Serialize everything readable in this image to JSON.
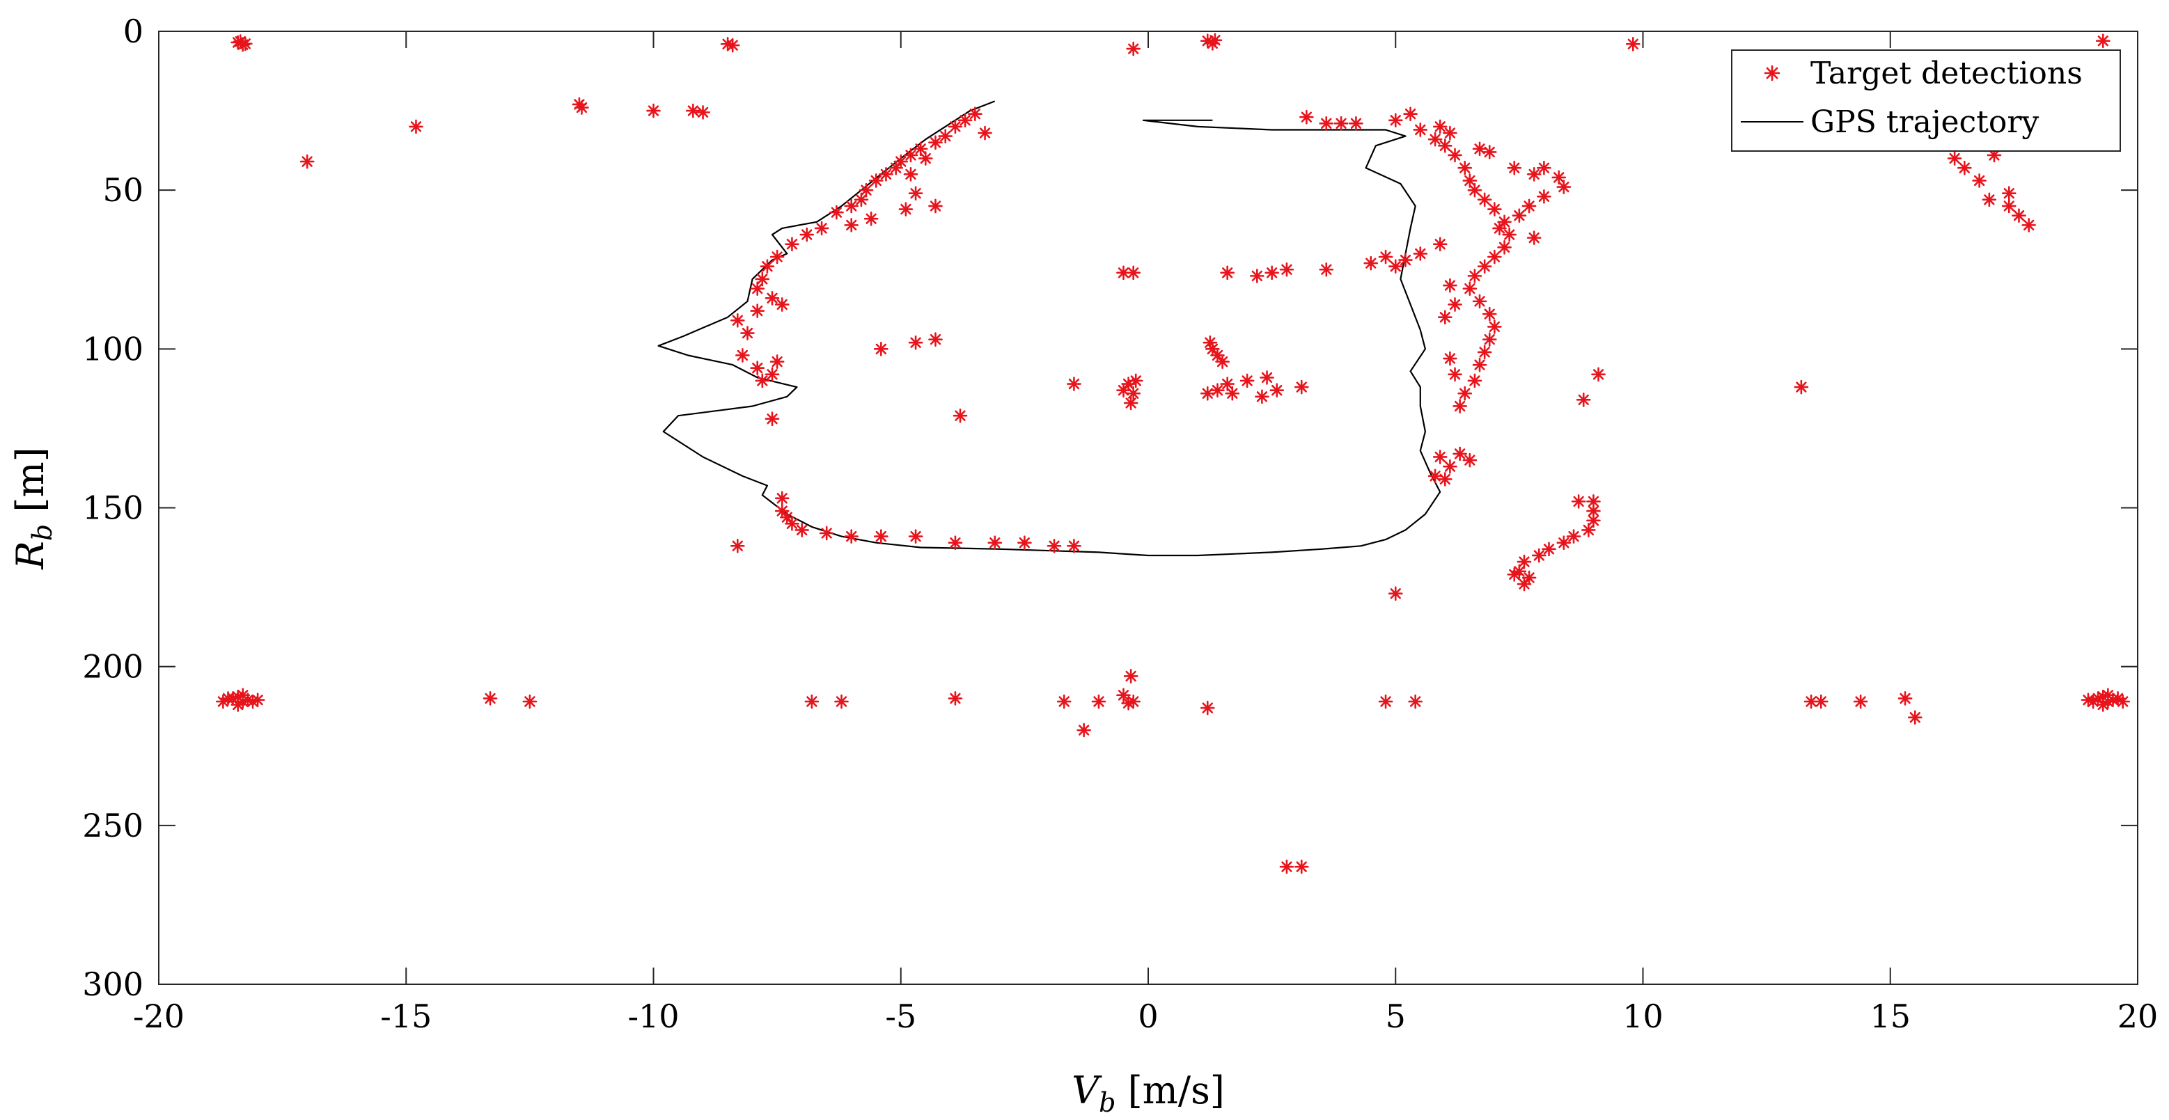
{
  "chart_data": {
    "type": "scatter",
    "title": "",
    "xlabel": {
      "main": "V",
      "sub": "b",
      "unit": " [m/s]"
    },
    "ylabel": {
      "main": "R",
      "sub": "b",
      "unit": " [m]"
    },
    "xlim": [
      -20,
      20
    ],
    "ylim": [
      0,
      300
    ],
    "y_reversed": true,
    "grid": false,
    "legend_position": "top-right",
    "x_ticks": [
      -20,
      -15,
      -10,
      -5,
      0,
      5,
      10,
      15,
      20
    ],
    "y_ticks": [
      0,
      50,
      100,
      150,
      200,
      250,
      300
    ],
    "series": [
      {
        "name": "Target detections",
        "marker": "asterisk",
        "color": "#e8141c",
        "points": [
          [
            -18.4,
            3.5
          ],
          [
            -18.3,
            4.2
          ],
          [
            -18.35,
            3.2
          ],
          [
            -18.25,
            3.9
          ],
          [
            -8.5,
            4
          ],
          [
            -8.4,
            4.4
          ],
          [
            -0.3,
            5.5
          ],
          [
            1.2,
            3
          ],
          [
            1.3,
            3.8
          ],
          [
            1.35,
            2.8
          ],
          [
            9.8,
            4
          ],
          [
            19.3,
            3
          ],
          [
            -17,
            41
          ],
          [
            -14.8,
            30
          ],
          [
            -11.5,
            23
          ],
          [
            -11.45,
            24
          ],
          [
            -10,
            25
          ],
          [
            -9.2,
            25
          ],
          [
            -9.0,
            25.5
          ],
          [
            -3.5,
            26
          ],
          [
            -3.7,
            28
          ],
          [
            -3.9,
            30
          ],
          [
            -4.1,
            33
          ],
          [
            -4.3,
            35
          ],
          [
            -4.6,
            37
          ],
          [
            -4.8,
            39
          ],
          [
            -5.0,
            41
          ],
          [
            -5.1,
            43
          ],
          [
            -5.3,
            45
          ],
          [
            -5.5,
            47
          ],
          [
            -5.7,
            50
          ],
          [
            -5.8,
            53
          ],
          [
            -6.0,
            55
          ],
          [
            -6.3,
            57
          ],
          [
            -5.6,
            59
          ],
          [
            -6.0,
            61
          ],
          [
            -6.6,
            62
          ],
          [
            -6.9,
            64
          ],
          [
            -7.2,
            67
          ],
          [
            -7.5,
            71
          ],
          [
            -7.7,
            74
          ],
          [
            -7.8,
            78
          ],
          [
            -7.9,
            81
          ],
          [
            -7.6,
            84
          ],
          [
            -7.4,
            86
          ],
          [
            -7.9,
            88
          ],
          [
            -8.3,
            91
          ],
          [
            -8.1,
            95
          ],
          [
            -8.2,
            102
          ],
          [
            -7.9,
            106
          ],
          [
            -7.6,
            108
          ],
          [
            -7.8,
            110
          ],
          [
            -7.6,
            122
          ],
          [
            -5.4,
            100
          ],
          [
            -4.7,
            98
          ],
          [
            -4.3,
            97
          ],
          [
            -4.8,
            45
          ],
          [
            -4.5,
            40
          ],
          [
            -4.7,
            51
          ],
          [
            -4.9,
            56
          ],
          [
            -4.3,
            55
          ],
          [
            -3.3,
            32
          ],
          [
            -7.5,
            104
          ],
          [
            -7.4,
            147
          ],
          [
            -7.4,
            151
          ],
          [
            -7.3,
            153
          ],
          [
            -7.2,
            155
          ],
          [
            -7.0,
            157
          ],
          [
            -8.3,
            162
          ],
          [
            -6.5,
            158
          ],
          [
            -6.0,
            159
          ],
          [
            -5.4,
            159
          ],
          [
            -4.7,
            159
          ],
          [
            -3.9,
            161
          ],
          [
            -3.1,
            161
          ],
          [
            -2.5,
            161
          ],
          [
            -1.9,
            162
          ],
          [
            -1.5,
            162
          ],
          [
            -1.5,
            111
          ],
          [
            -0.5,
            76
          ],
          [
            -0.3,
            76
          ],
          [
            -0.4,
            111
          ],
          [
            -0.5,
            113
          ],
          [
            -0.3,
            114
          ],
          [
            -0.35,
            117
          ],
          [
            -0.25,
            110
          ],
          [
            -3.8,
            121
          ],
          [
            1.25,
            98
          ],
          [
            1.3,
            100
          ],
          [
            1.4,
            102
          ],
          [
            1.5,
            104
          ],
          [
            1.6,
            111
          ],
          [
            1.4,
            113
          ],
          [
            1.2,
            114
          ],
          [
            1.7,
            114
          ],
          [
            2.0,
            110
          ],
          [
            2.3,
            115
          ],
          [
            2.4,
            109
          ],
          [
            2.6,
            113
          ],
          [
            3.1,
            112
          ],
          [
            1.6,
            76
          ],
          [
            2.2,
            77
          ],
          [
            2.5,
            76
          ],
          [
            2.8,
            75
          ],
          [
            3.6,
            75
          ],
          [
            3.2,
            27
          ],
          [
            3.6,
            29
          ],
          [
            3.9,
            29
          ],
          [
            4.2,
            29
          ],
          [
            5.0,
            28
          ],
          [
            5.3,
            26
          ],
          [
            5.5,
            31
          ],
          [
            5.8,
            34
          ],
          [
            6.0,
            36
          ],
          [
            6.2,
            39
          ],
          [
            6.4,
            43
          ],
          [
            6.5,
            47
          ],
          [
            6.6,
            50
          ],
          [
            6.8,
            53
          ],
          [
            7.0,
            56
          ],
          [
            7.2,
            60
          ],
          [
            7.3,
            64
          ],
          [
            7.2,
            68
          ],
          [
            7.0,
            71
          ],
          [
            6.8,
            74
          ],
          [
            6.6,
            77
          ],
          [
            6.5,
            81
          ],
          [
            6.7,
            85
          ],
          [
            6.9,
            89
          ],
          [
            7.0,
            93
          ],
          [
            6.9,
            97
          ],
          [
            6.8,
            101
          ],
          [
            6.7,
            105
          ],
          [
            6.6,
            110
          ],
          [
            6.4,
            114
          ],
          [
            6.3,
            118
          ],
          [
            5.9,
            30
          ],
          [
            6.1,
            32
          ],
          [
            6.9,
            38
          ],
          [
            6.7,
            37
          ],
          [
            7.4,
            43
          ],
          [
            7.8,
            45
          ],
          [
            8.0,
            43
          ],
          [
            8.3,
            46
          ],
          [
            8.4,
            49
          ],
          [
            8.0,
            52
          ],
          [
            7.7,
            55
          ],
          [
            7.5,
            58
          ],
          [
            7.1,
            62
          ],
          [
            7.8,
            65
          ],
          [
            5.9,
            67
          ],
          [
            5.5,
            70
          ],
          [
            5.2,
            72
          ],
          [
            5.0,
            74
          ],
          [
            4.8,
            71
          ],
          [
            4.5,
            73
          ],
          [
            6.1,
            80
          ],
          [
            6.2,
            86
          ],
          [
            6.0,
            90
          ],
          [
            6.1,
            103
          ],
          [
            6.2,
            108
          ],
          [
            5.9,
            134
          ],
          [
            6.1,
            137
          ],
          [
            6.0,
            141
          ],
          [
            6.3,
            133
          ],
          [
            6.5,
            135
          ],
          [
            5.8,
            140
          ],
          [
            8.7,
            148
          ],
          [
            9.0,
            148
          ],
          [
            9.0,
            151
          ],
          [
            9.0,
            154
          ],
          [
            8.9,
            157
          ],
          [
            8.6,
            159
          ],
          [
            8.4,
            161
          ],
          [
            8.1,
            163
          ],
          [
            7.9,
            165
          ],
          [
            7.6,
            167
          ],
          [
            7.5,
            170
          ],
          [
            7.7,
            172
          ],
          [
            7.6,
            174
          ],
          [
            7.4,
            171
          ],
          [
            9.1,
            108
          ],
          [
            8.8,
            116
          ],
          [
            5.0,
            177
          ],
          [
            13.2,
            112
          ],
          [
            16.3,
            40
          ],
          [
            16.5,
            43
          ],
          [
            16.8,
            47
          ],
          [
            17.0,
            53
          ],
          [
            17.4,
            55
          ],
          [
            17.6,
            58
          ],
          [
            17.8,
            61
          ],
          [
            17.4,
            51
          ],
          [
            17.1,
            39
          ],
          [
            -18.5,
            210
          ],
          [
            -18.3,
            211
          ],
          [
            -18.4,
            209.5
          ],
          [
            -18.2,
            210.5
          ],
          [
            -18.6,
            210
          ],
          [
            -18.1,
            211
          ],
          [
            -18.4,
            212
          ],
          [
            -18.3,
            209
          ],
          [
            -18.0,
            210.5
          ],
          [
            -18.7,
            211
          ],
          [
            19.2,
            210
          ],
          [
            19.4,
            211
          ],
          [
            19.3,
            209.5
          ],
          [
            19.5,
            210.5
          ],
          [
            19.1,
            211
          ],
          [
            19.6,
            210
          ],
          [
            19.3,
            212
          ],
          [
            19.4,
            209
          ],
          [
            19.0,
            210.5
          ],
          [
            19.7,
            211
          ],
          [
            -13.3,
            210
          ],
          [
            -12.5,
            211
          ],
          [
            -6.8,
            211
          ],
          [
            -6.2,
            211
          ],
          [
            -3.9,
            210
          ],
          [
            -1.7,
            211
          ],
          [
            -1.3,
            220
          ],
          [
            -1.0,
            211
          ],
          [
            -0.5,
            209
          ],
          [
            -0.35,
            203
          ],
          [
            -0.3,
            211
          ],
          [
            -0.4,
            211.5
          ],
          [
            1.2,
            213
          ],
          [
            4.8,
            211
          ],
          [
            5.4,
            211
          ],
          [
            2.8,
            263
          ],
          [
            3.1,
            263
          ],
          [
            13.4,
            211
          ],
          [
            13.6,
            211
          ],
          [
            14.4,
            211
          ],
          [
            15.3,
            210
          ],
          [
            15.5,
            216
          ]
        ]
      },
      {
        "name": "GPS trajectory",
        "color": "#000000",
        "points": [
          [
            -3.1,
            22
          ],
          [
            -3.6,
            25
          ],
          [
            -4.0,
            29
          ],
          [
            -4.5,
            34
          ],
          [
            -5.0,
            40
          ],
          [
            -5.4,
            45
          ],
          [
            -5.8,
            50
          ],
          [
            -6.2,
            55
          ],
          [
            -6.7,
            60
          ],
          [
            -7.4,
            62
          ],
          [
            -7.6,
            64
          ],
          [
            -7.3,
            70
          ],
          [
            -7.6,
            72
          ],
          [
            -8.0,
            78
          ],
          [
            -8.1,
            85
          ],
          [
            -8.5,
            90
          ],
          [
            -9.4,
            96
          ],
          [
            -9.9,
            99
          ],
          [
            -9.3,
            102
          ],
          [
            -8.4,
            105
          ],
          [
            -7.9,
            109
          ],
          [
            -7.1,
            112
          ],
          [
            -7.3,
            115
          ],
          [
            -8.0,
            118
          ],
          [
            -9.5,
            121
          ],
          [
            -9.8,
            126
          ],
          [
            -9.0,
            134
          ],
          [
            -8.2,
            140
          ],
          [
            -7.7,
            143
          ],
          [
            -7.8,
            146
          ],
          [
            -7.3,
            152
          ],
          [
            -6.8,
            156
          ],
          [
            -6.2,
            159
          ],
          [
            -5.5,
            161
          ],
          [
            -4.6,
            162.5
          ],
          [
            -3.0,
            163
          ],
          [
            -1.0,
            164
          ],
          [
            0.0,
            165
          ],
          [
            1.0,
            165
          ],
          [
            2.5,
            164
          ],
          [
            3.5,
            163
          ],
          [
            4.3,
            162
          ],
          [
            4.8,
            160
          ],
          [
            5.2,
            157
          ],
          [
            5.6,
            152
          ],
          [
            5.9,
            145
          ],
          [
            5.7,
            139
          ],
          [
            5.5,
            132
          ],
          [
            5.6,
            126
          ],
          [
            5.5,
            118
          ],
          [
            5.5,
            112
          ],
          [
            5.3,
            107
          ],
          [
            5.6,
            100
          ],
          [
            5.5,
            94
          ],
          [
            5.3,
            86
          ],
          [
            5.1,
            78
          ],
          [
            5.2,
            70
          ],
          [
            5.3,
            62
          ],
          [
            5.4,
            55
          ],
          [
            5.1,
            48
          ],
          [
            4.4,
            43
          ],
          [
            4.6,
            36
          ],
          [
            5.2,
            33
          ],
          [
            4.8,
            31
          ],
          [
            3.8,
            31
          ],
          [
            2.5,
            31
          ],
          [
            1.0,
            30
          ],
          [
            -0.1,
            28
          ],
          [
            1.3,
            28
          ]
        ]
      }
    ]
  }
}
